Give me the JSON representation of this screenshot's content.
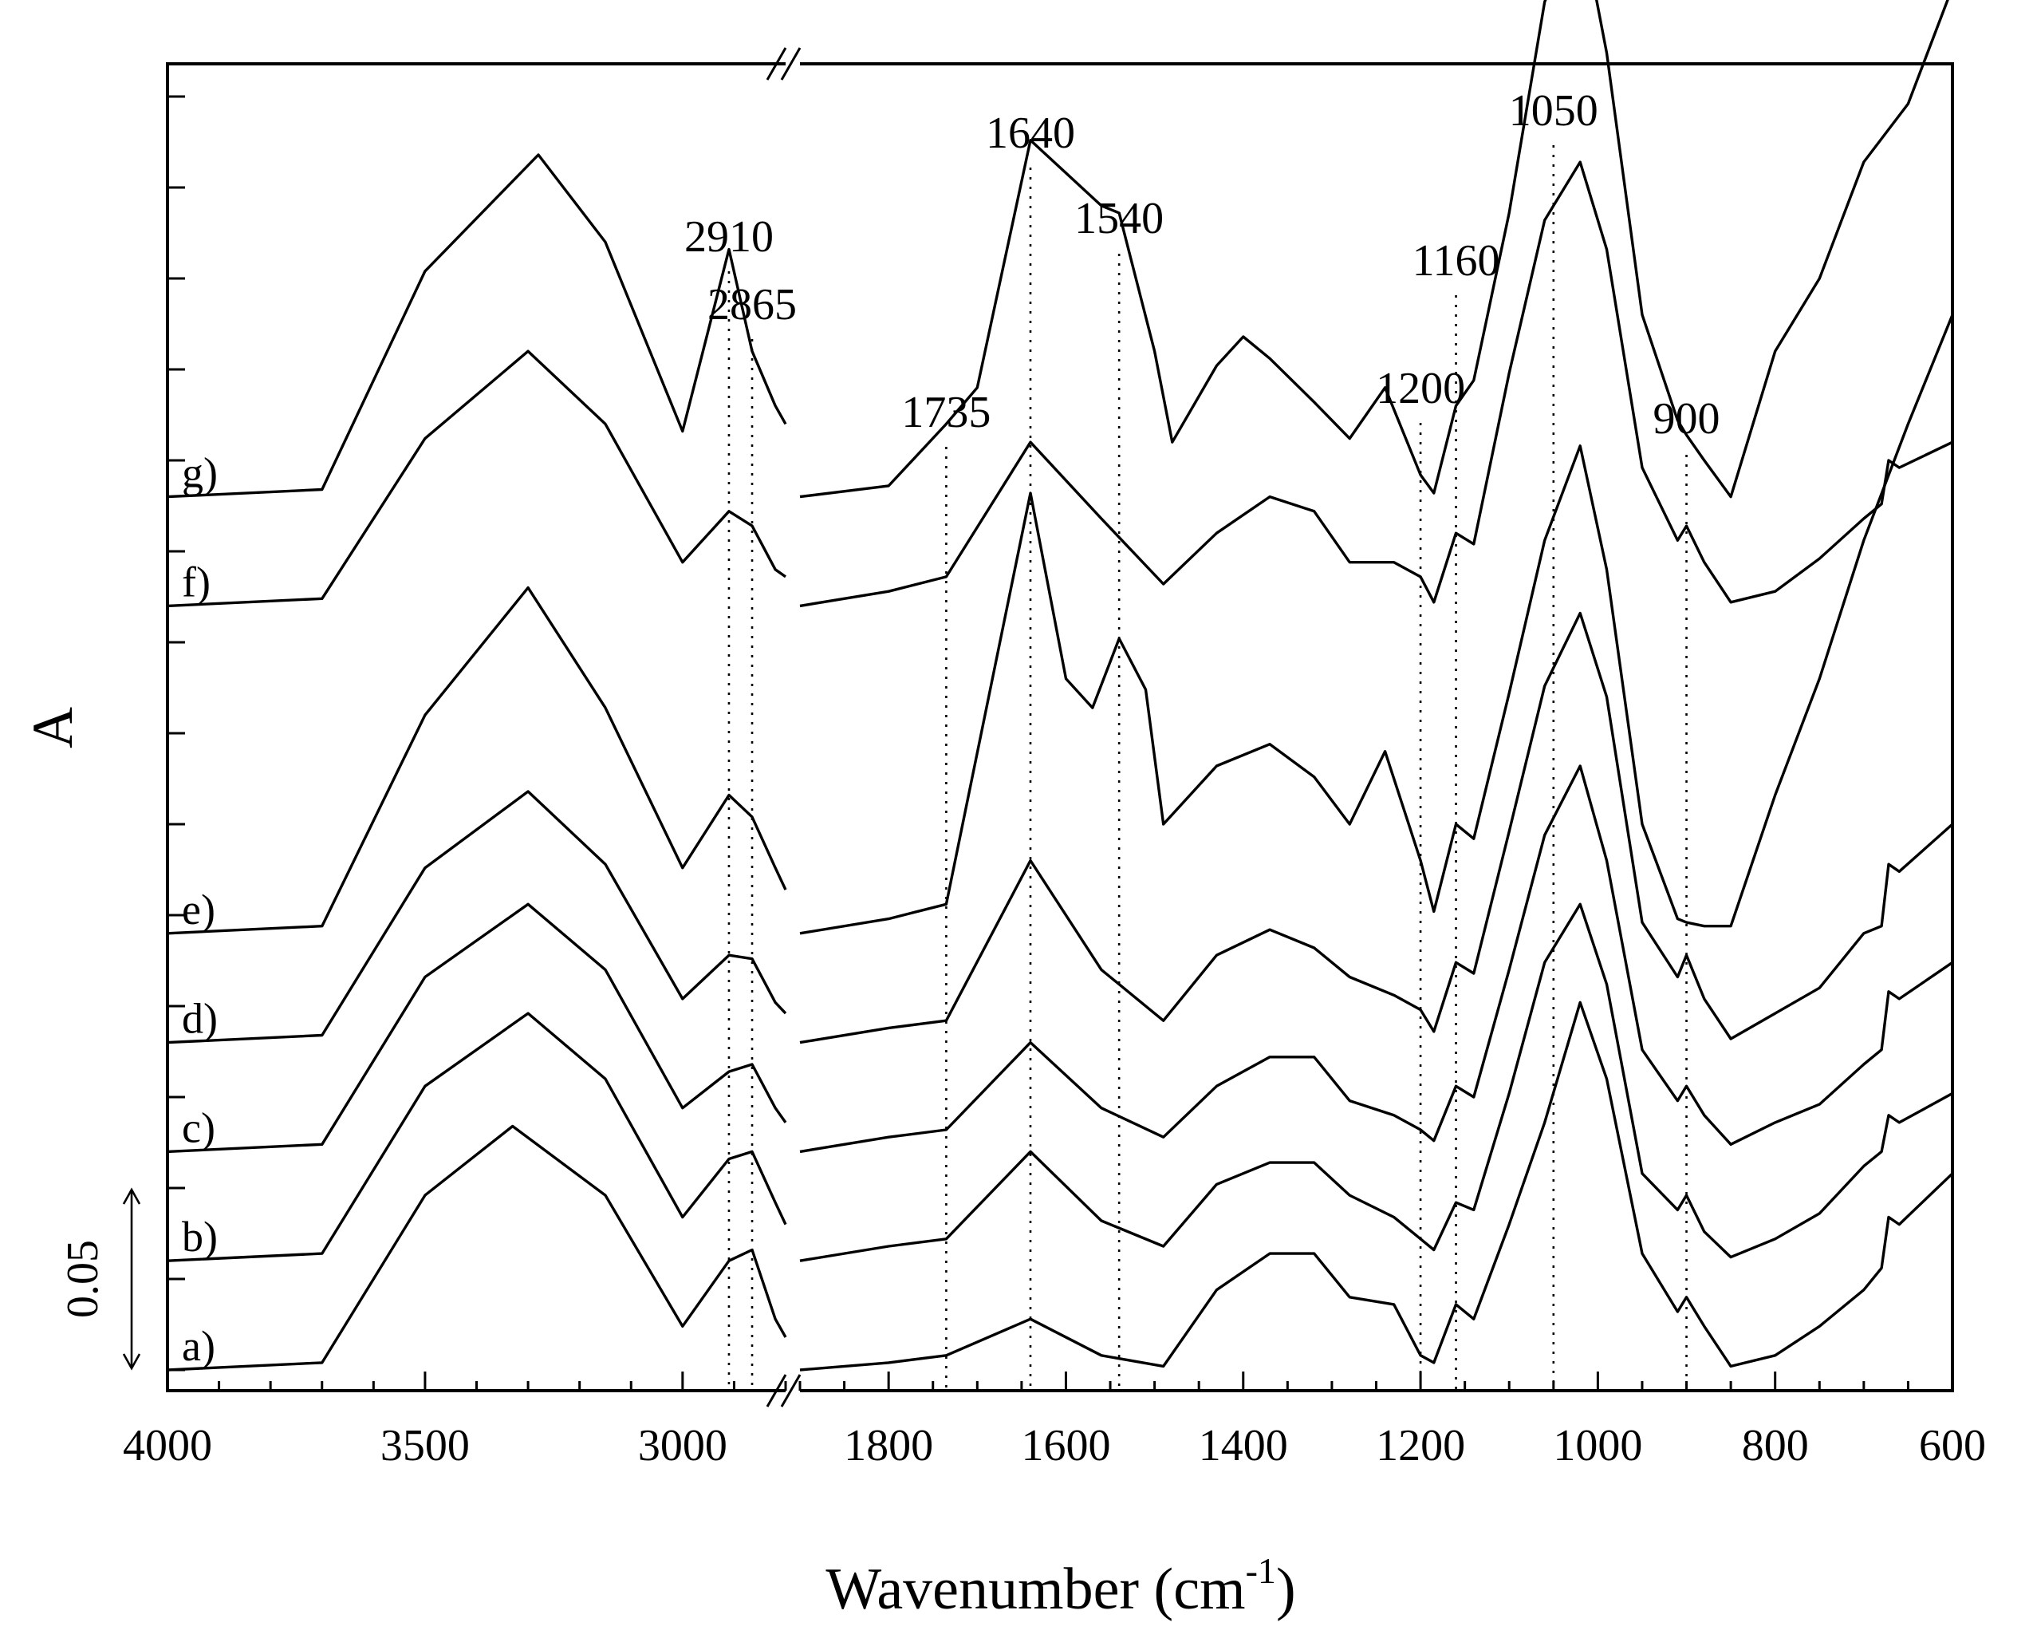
{
  "chart_data": {
    "type": "line",
    "title": "",
    "xlabel": "Wavenumber (cm",
    "xlabel_sup": "-1",
    "xlabel_close": ")",
    "ylabel": "A",
    "scale_bar_label": "0.05",
    "scale_bar_value": 0.05,
    "x_axis": {
      "reversed": true,
      "broken": true,
      "segments": [
        {
          "range": [
            4000,
            2800
          ],
          "ticks": [
            4000,
            3500,
            3000
          ],
          "tick_labels": [
            "4000",
            "3500",
            "3000"
          ]
        },
        {
          "range": [
            1900,
            600
          ],
          "ticks": [
            1800,
            1600,
            1400,
            1200,
            1000,
            800,
            600
          ],
          "tick_labels": [
            "1800",
            "1600",
            "1400",
            "1200",
            "1000",
            "800",
            "600"
          ]
        }
      ]
    },
    "ylim": [
      0,
      0.34
    ],
    "reference_lines": [
      {
        "x": 2910,
        "label": "2910"
      },
      {
        "x": 2865,
        "label": "2865"
      },
      {
        "x": 1735,
        "label": "1735"
      },
      {
        "x": 1640,
        "label": "1640"
      },
      {
        "x": 1540,
        "label": "1540"
      },
      {
        "x": 1200,
        "label": "1200"
      },
      {
        "x": 1160,
        "label": "1160"
      },
      {
        "x": 1050,
        "label": "1050"
      },
      {
        "x": 900,
        "label": "900"
      }
    ],
    "series": [
      {
        "name": "a)",
        "offset": 0.0,
        "points": [
          [
            4000,
            0.0
          ],
          [
            3700,
            0.002
          ],
          [
            3500,
            0.048
          ],
          [
            3330,
            0.067
          ],
          [
            3150,
            0.048
          ],
          [
            3000,
            0.012
          ],
          [
            2910,
            0.03
          ],
          [
            2865,
            0.033
          ],
          [
            2820,
            0.014
          ],
          [
            2800,
            0.009
          ],
          [
            1900,
            0.0
          ],
          [
            1800,
            0.002
          ],
          [
            1735,
            0.004
          ],
          [
            1640,
            0.014
          ],
          [
            1560,
            0.004
          ],
          [
            1490,
            0.001
          ],
          [
            1430,
            0.022
          ],
          [
            1370,
            0.032
          ],
          [
            1320,
            0.032
          ],
          [
            1280,
            0.02
          ],
          [
            1230,
            0.018
          ],
          [
            1200,
            0.004
          ],
          [
            1185,
            0.002
          ],
          [
            1160,
            0.018
          ],
          [
            1140,
            0.014
          ],
          [
            1100,
            0.04
          ],
          [
            1060,
            0.068
          ],
          [
            1020,
            0.101
          ],
          [
            990,
            0.08
          ],
          [
            950,
            0.032
          ],
          [
            910,
            0.016
          ],
          [
            900,
            0.02
          ],
          [
            880,
            0.012
          ],
          [
            850,
            0.001
          ],
          [
            800,
            0.004
          ],
          [
            750,
            0.012
          ],
          [
            700,
            0.022
          ],
          [
            680,
            0.028
          ],
          [
            672,
            0.042
          ],
          [
            660,
            0.04
          ],
          [
            600,
            0.054
          ]
        ]
      },
      {
        "name": "b)",
        "offset": 0.03,
        "points": [
          [
            4000,
            0.0
          ],
          [
            3700,
            0.002
          ],
          [
            3500,
            0.048
          ],
          [
            3300,
            0.068
          ],
          [
            3150,
            0.05
          ],
          [
            3000,
            0.012
          ],
          [
            2910,
            0.028
          ],
          [
            2865,
            0.03
          ],
          [
            2820,
            0.016
          ],
          [
            2800,
            0.01
          ],
          [
            1900,
            0.0
          ],
          [
            1800,
            0.004
          ],
          [
            1735,
            0.006
          ],
          [
            1640,
            0.03
          ],
          [
            1560,
            0.011
          ],
          [
            1490,
            0.004
          ],
          [
            1430,
            0.021
          ],
          [
            1370,
            0.027
          ],
          [
            1320,
            0.027
          ],
          [
            1280,
            0.018
          ],
          [
            1230,
            0.012
          ],
          [
            1200,
            0.006
          ],
          [
            1185,
            0.003
          ],
          [
            1160,
            0.016
          ],
          [
            1140,
            0.014
          ],
          [
            1100,
            0.046
          ],
          [
            1060,
            0.082
          ],
          [
            1020,
            0.098
          ],
          [
            990,
            0.076
          ],
          [
            950,
            0.024
          ],
          [
            910,
            0.014
          ],
          [
            900,
            0.018
          ],
          [
            880,
            0.008
          ],
          [
            850,
            0.001
          ],
          [
            800,
            0.006
          ],
          [
            750,
            0.013
          ],
          [
            700,
            0.026
          ],
          [
            680,
            0.03
          ],
          [
            672,
            0.04
          ],
          [
            660,
            0.038
          ],
          [
            600,
            0.046
          ]
        ]
      },
      {
        "name": "c)",
        "offset": 0.06,
        "points": [
          [
            4000,
            0.0
          ],
          [
            3700,
            0.002
          ],
          [
            3500,
            0.048
          ],
          [
            3300,
            0.068
          ],
          [
            3150,
            0.05
          ],
          [
            3000,
            0.012
          ],
          [
            2910,
            0.022
          ],
          [
            2865,
            0.024
          ],
          [
            2820,
            0.012
          ],
          [
            2800,
            0.008
          ],
          [
            1900,
            0.0
          ],
          [
            1800,
            0.004
          ],
          [
            1735,
            0.006
          ],
          [
            1640,
            0.03
          ],
          [
            1560,
            0.012
          ],
          [
            1490,
            0.004
          ],
          [
            1430,
            0.018
          ],
          [
            1370,
            0.026
          ],
          [
            1320,
            0.026
          ],
          [
            1280,
            0.014
          ],
          [
            1230,
            0.01
          ],
          [
            1200,
            0.006
          ],
          [
            1185,
            0.003
          ],
          [
            1160,
            0.018
          ],
          [
            1140,
            0.015
          ],
          [
            1100,
            0.05
          ],
          [
            1060,
            0.087
          ],
          [
            1020,
            0.106
          ],
          [
            990,
            0.08
          ],
          [
            950,
            0.028
          ],
          [
            910,
            0.014
          ],
          [
            900,
            0.018
          ],
          [
            880,
            0.01
          ],
          [
            850,
            0.002
          ],
          [
            800,
            0.008
          ],
          [
            750,
            0.013
          ],
          [
            700,
            0.024
          ],
          [
            680,
            0.028
          ],
          [
            672,
            0.044
          ],
          [
            660,
            0.042
          ],
          [
            600,
            0.052
          ]
        ]
      },
      {
        "name": "d)",
        "offset": 0.09,
        "points": [
          [
            4000,
            0.0
          ],
          [
            3700,
            0.002
          ],
          [
            3500,
            0.048
          ],
          [
            3300,
            0.069
          ],
          [
            3150,
            0.049
          ],
          [
            3000,
            0.012
          ],
          [
            2910,
            0.024
          ],
          [
            2865,
            0.023
          ],
          [
            2820,
            0.011
          ],
          [
            2800,
            0.008
          ],
          [
            1900,
            0.0
          ],
          [
            1800,
            0.004
          ],
          [
            1735,
            0.006
          ],
          [
            1640,
            0.05
          ],
          [
            1560,
            0.02
          ],
          [
            1490,
            0.006
          ],
          [
            1430,
            0.024
          ],
          [
            1370,
            0.031
          ],
          [
            1320,
            0.026
          ],
          [
            1280,
            0.018
          ],
          [
            1230,
            0.013
          ],
          [
            1200,
            0.009
          ],
          [
            1185,
            0.003
          ],
          [
            1160,
            0.022
          ],
          [
            1140,
            0.019
          ],
          [
            1100,
            0.058
          ],
          [
            1060,
            0.098
          ],
          [
            1020,
            0.118
          ],
          [
            990,
            0.095
          ],
          [
            950,
            0.033
          ],
          [
            910,
            0.018
          ],
          [
            900,
            0.024
          ],
          [
            880,
            0.012
          ],
          [
            850,
            0.001
          ],
          [
            800,
            0.008
          ],
          [
            750,
            0.015
          ],
          [
            700,
            0.03
          ],
          [
            680,
            0.032
          ],
          [
            672,
            0.049
          ],
          [
            660,
            0.047
          ],
          [
            600,
            0.06
          ]
        ]
      },
      {
        "name": "e)",
        "offset": 0.12,
        "points": [
          [
            4000,
            0.0
          ],
          [
            3700,
            0.002
          ],
          [
            3500,
            0.06
          ],
          [
            3300,
            0.095
          ],
          [
            3150,
            0.062
          ],
          [
            3000,
            0.018
          ],
          [
            2910,
            0.038
          ],
          [
            2865,
            0.032
          ],
          [
            2820,
            0.018
          ],
          [
            2800,
            0.012
          ],
          [
            1900,
            0.0
          ],
          [
            1800,
            0.004
          ],
          [
            1735,
            0.008
          ],
          [
            1640,
            0.121
          ],
          [
            1600,
            0.07
          ],
          [
            1570,
            0.062
          ],
          [
            1540,
            0.081
          ],
          [
            1510,
            0.067
          ],
          [
            1490,
            0.03
          ],
          [
            1430,
            0.046
          ],
          [
            1370,
            0.052
          ],
          [
            1320,
            0.043
          ],
          [
            1280,
            0.03
          ],
          [
            1240,
            0.05
          ],
          [
            1200,
            0.02
          ],
          [
            1185,
            0.006
          ],
          [
            1160,
            0.03
          ],
          [
            1140,
            0.026
          ],
          [
            1100,
            0.066
          ],
          [
            1060,
            0.108
          ],
          [
            1020,
            0.134
          ],
          [
            990,
            0.1
          ],
          [
            950,
            0.03
          ],
          [
            910,
            0.004
          ],
          [
            900,
            0.003
          ],
          [
            880,
            0.002
          ],
          [
            850,
            0.002
          ],
          [
            800,
            0.038
          ],
          [
            750,
            0.07
          ],
          [
            700,
            0.108
          ],
          [
            650,
            0.14
          ],
          [
            600,
            0.17
          ]
        ]
      },
      {
        "name": "f)",
        "offset": 0.21,
        "points": [
          [
            4000,
            0.0
          ],
          [
            3700,
            0.002
          ],
          [
            3500,
            0.046
          ],
          [
            3300,
            0.07
          ],
          [
            3150,
            0.05
          ],
          [
            3000,
            0.012
          ],
          [
            2910,
            0.026
          ],
          [
            2865,
            0.022
          ],
          [
            2820,
            0.01
          ],
          [
            2800,
            0.008
          ],
          [
            1900,
            0.0
          ],
          [
            1800,
            0.004
          ],
          [
            1735,
            0.008
          ],
          [
            1640,
            0.045
          ],
          [
            1560,
            0.024
          ],
          [
            1490,
            0.006
          ],
          [
            1430,
            0.02
          ],
          [
            1370,
            0.03
          ],
          [
            1320,
            0.026
          ],
          [
            1280,
            0.012
          ],
          [
            1230,
            0.012
          ],
          [
            1200,
            0.008
          ],
          [
            1185,
            0.001
          ],
          [
            1160,
            0.02
          ],
          [
            1140,
            0.017
          ],
          [
            1100,
            0.064
          ],
          [
            1060,
            0.106
          ],
          [
            1020,
            0.122
          ],
          [
            990,
            0.098
          ],
          [
            950,
            0.038
          ],
          [
            910,
            0.018
          ],
          [
            900,
            0.022
          ],
          [
            880,
            0.012
          ],
          [
            850,
            0.001
          ],
          [
            800,
            0.004
          ],
          [
            750,
            0.013
          ],
          [
            700,
            0.024
          ],
          [
            680,
            0.028
          ],
          [
            672,
            0.04
          ],
          [
            660,
            0.038
          ],
          [
            600,
            0.045
          ]
        ]
      },
      {
        "name": "g)",
        "offset": 0.24,
        "points": [
          [
            4000,
            0.0
          ],
          [
            3700,
            0.002
          ],
          [
            3500,
            0.062
          ],
          [
            3280,
            0.094
          ],
          [
            3150,
            0.07
          ],
          [
            3000,
            0.018
          ],
          [
            2910,
            0.068
          ],
          [
            2865,
            0.04
          ],
          [
            2820,
            0.025
          ],
          [
            2800,
            0.02
          ],
          [
            1900,
            0.0
          ],
          [
            1800,
            0.003
          ],
          [
            1735,
            0.02
          ],
          [
            1700,
            0.03
          ],
          [
            1640,
            0.098
          ],
          [
            1560,
            0.08
          ],
          [
            1540,
            0.078
          ],
          [
            1500,
            0.04
          ],
          [
            1480,
            0.015
          ],
          [
            1430,
            0.036
          ],
          [
            1400,
            0.044
          ],
          [
            1370,
            0.038
          ],
          [
            1320,
            0.026
          ],
          [
            1280,
            0.016
          ],
          [
            1240,
            0.03
          ],
          [
            1200,
            0.006
          ],
          [
            1185,
            0.001
          ],
          [
            1160,
            0.025
          ],
          [
            1140,
            0.032
          ],
          [
            1100,
            0.078
          ],
          [
            1060,
            0.136
          ],
          [
            1020,
            0.16
          ],
          [
            990,
            0.122
          ],
          [
            950,
            0.05
          ],
          [
            910,
            0.021
          ],
          [
            900,
            0.017
          ],
          [
            880,
            0.01
          ],
          [
            850,
            0.0
          ],
          [
            800,
            0.04
          ],
          [
            750,
            0.06
          ],
          [
            700,
            0.092
          ],
          [
            650,
            0.108
          ],
          [
            600,
            0.14
          ]
        ]
      }
    ]
  }
}
